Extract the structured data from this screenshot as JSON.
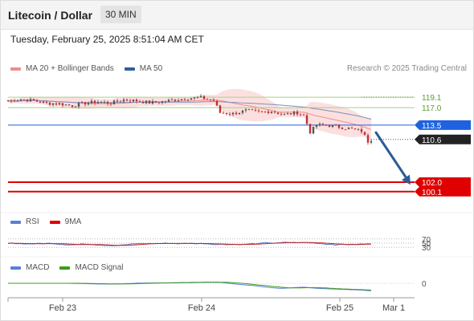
{
  "header": {
    "title": "Litecoin / Dollar",
    "interval": "30 MIN",
    "timestamp": "Tuesday, February 25, 2025 8:51:04 AM CET"
  },
  "legend": {
    "main": [
      {
        "label": "MA 20 + Bollinger Bands",
        "color": "#f28b8b"
      },
      {
        "label": "MA 50",
        "color": "#2e5f9e"
      }
    ],
    "rsi": [
      {
        "label": "RSI",
        "color": "#5b7fd6"
      },
      {
        "label": "9MA",
        "color": "#e00000"
      }
    ],
    "macd": [
      {
        "label": "MACD",
        "color": "#5b7fd6"
      },
      {
        "label": "MACD Signal",
        "color": "#3c9a1c"
      }
    ]
  },
  "source": "Research © 2025 Trading Central",
  "colors": {
    "resistance": "#5a9e2a",
    "pivot": "#1e62e0",
    "support": "#e00000",
    "last": "#222222",
    "arrow": "#2a5c96",
    "bollinger": "#fbdada",
    "candle_up": "#555555",
    "candle_down": "#c03030"
  },
  "chart_data": [
    {
      "type": "candlestick",
      "title": "Litecoin / Dollar",
      "x_ticks": [
        "Feb 23",
        "Feb 24",
        "Feb 25",
        "Mar 1"
      ],
      "ylim": [
        97.0,
        123.0
      ],
      "price_path": [
        [
          0,
          118.3
        ],
        [
          4,
          118.7
        ],
        [
          8,
          118.4
        ],
        [
          12,
          117.9
        ],
        [
          16,
          117.8
        ],
        [
          20,
          117.4
        ],
        [
          24,
          117.9
        ],
        [
          28,
          118.2
        ],
        [
          32,
          117.9
        ],
        [
          36,
          118.6
        ],
        [
          40,
          118.4
        ],
        [
          44,
          118.0
        ],
        [
          48,
          118.2
        ],
        [
          52,
          118.6
        ],
        [
          56,
          118.9
        ],
        [
          60,
          119.0
        ],
        [
          64,
          118.4
        ],
        [
          66,
          116.0
        ],
        [
          70,
          115.8
        ],
        [
          74,
          116.4
        ],
        [
          78,
          116.1
        ],
        [
          82,
          116.3
        ],
        [
          86,
          115.6
        ],
        [
          90,
          116.0
        ],
        [
          92,
          115.4
        ],
        [
          94,
          112.1
        ],
        [
          96,
          113.5
        ],
        [
          100,
          113.4
        ],
        [
          104,
          113.0
        ],
        [
          106,
          112.8
        ],
        [
          110,
          112.3
        ],
        [
          112,
          110.2
        ],
        [
          113,
          110.6
        ]
      ],
      "lines": [
        {
          "label": "119.1",
          "value": 119.1,
          "kind": "resistance"
        },
        {
          "label": "117.0",
          "value": 117.0,
          "kind": "resistance"
        },
        {
          "label": "113.5",
          "value": 113.5,
          "kind": "pivot"
        },
        {
          "label": "110.6",
          "value": 110.6,
          "kind": "last"
        },
        {
          "label": "102.0",
          "value": 102.0,
          "kind": "support"
        },
        {
          "label": "100.1",
          "value": 100.1,
          "kind": "support"
        }
      ],
      "forecast_arrow": {
        "from": [
          113,
          112.0
        ],
        "to": [
          122,
          101.5
        ]
      }
    },
    {
      "type": "line",
      "name": "RSI",
      "y_ticks": [
        "70",
        "50",
        "30"
      ],
      "ylim": [
        0,
        100
      ],
      "levels": [
        70,
        50,
        30
      ]
    },
    {
      "type": "line",
      "name": "MACD",
      "y_ticks": [
        "0"
      ],
      "ylim": [
        -1.5,
        1.5
      ]
    }
  ]
}
